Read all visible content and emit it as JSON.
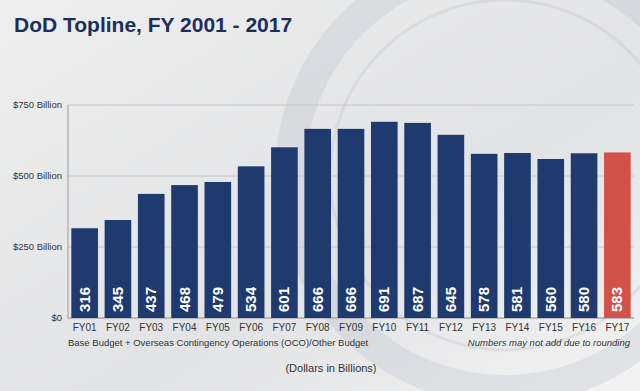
{
  "chart_data": {
    "type": "bar",
    "title": "DoD Topline, FY 2001 - 2017",
    "categories": [
      "FY01",
      "FY02",
      "FY03",
      "FY04",
      "FY05",
      "FY06",
      "FY07",
      "FY08",
      "FY09",
      "FY10",
      "FY11",
      "FY12",
      "FY13",
      "FY14",
      "FY15",
      "FY16",
      "FY17"
    ],
    "values": [
      316,
      345,
      437,
      468,
      479,
      534,
      601,
      666,
      666,
      691,
      687,
      645,
      578,
      581,
      560,
      580,
      583
    ],
    "colors": [
      "#1f3a6f",
      "#1f3a6f",
      "#1f3a6f",
      "#1f3a6f",
      "#1f3a6f",
      "#1f3a6f",
      "#1f3a6f",
      "#1f3a6f",
      "#1f3a6f",
      "#1f3a6f",
      "#1f3a6f",
      "#1f3a6f",
      "#1f3a6f",
      "#1f3a6f",
      "#1f3a6f",
      "#1f3a6f",
      "#d2524a"
    ],
    "ylim": [
      0,
      750
    ],
    "yticks": [
      {
        "value": 0,
        "label": "$0"
      },
      {
        "value": 250,
        "label": "$250 Billion"
      },
      {
        "value": 500,
        "label": "$500 Billion"
      },
      {
        "value": 750,
        "label": "$750 Billion"
      }
    ],
    "grid": true,
    "data_labels": true,
    "annotations": [
      "Base Budget + Overseas Contingency Operations (OCO)/Other Budget",
      "Numbers may not add due to rounding"
    ],
    "x_label": "(Dollars in Billions)"
  }
}
